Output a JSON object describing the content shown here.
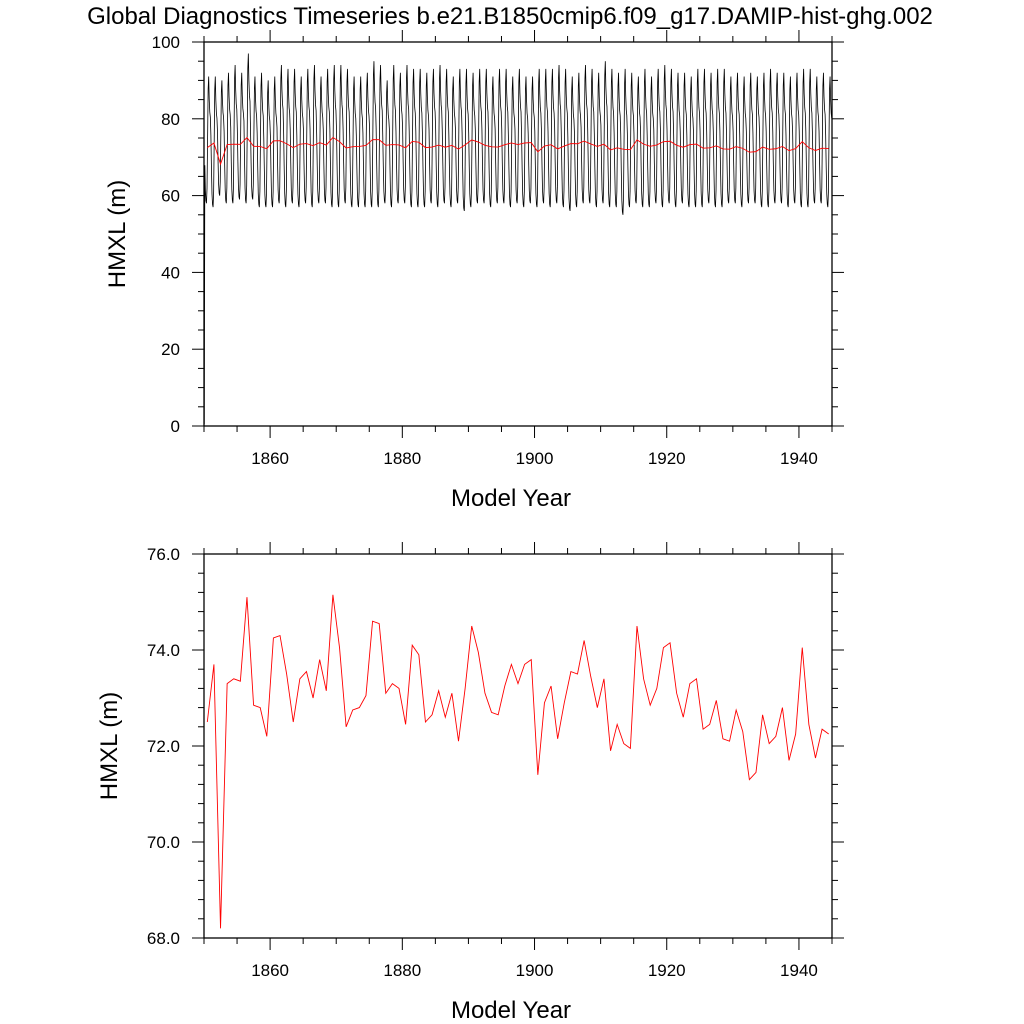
{
  "title": "Global Diagnostics Timeseries b.e21.B1850cmip6.f09_g17.DAMIP-hist-ghg.002",
  "chart_data": [
    {
      "type": "line",
      "xlabel": "Model Year",
      "ylabel": "HMXL (m)",
      "xlim": [
        1850,
        1945
      ],
      "ylim": [
        0,
        100
      ],
      "x_ticks": [
        "1860",
        "1880",
        "1900",
        "1920",
        "1940"
      ],
      "y_ticks": [
        "0",
        "20",
        "40",
        "60",
        "80",
        "100"
      ],
      "series": [
        {
          "color": "#000000",
          "resolution": "monthly",
          "start_year": 1850,
          "first_value": 0.5,
          "annual_max": [
            91,
            91,
            90,
            92,
            94,
            92,
            97,
            91,
            92,
            90,
            91,
            94,
            93,
            93,
            91,
            93,
            94,
            91,
            93,
            94,
            94,
            93,
            91,
            91,
            92,
            95,
            94,
            90,
            94,
            92,
            94,
            93,
            93,
            92,
            93,
            94,
            93,
            91,
            93,
            93,
            92,
            93,
            93,
            91,
            93,
            93,
            91,
            93,
            91,
            91,
            93,
            93,
            93,
            94,
            93,
            91,
            92,
            94,
            93,
            92,
            95,
            93,
            92,
            93,
            92,
            91,
            93,
            91,
            93,
            94,
            93,
            92,
            92,
            91,
            93,
            93,
            92,
            93,
            93,
            91,
            92,
            91,
            92,
            91,
            92,
            93,
            92,
            92,
            91,
            92,
            93,
            93,
            91,
            92,
            91
          ],
          "annual_min": [
            58,
            57,
            60,
            58,
            58,
            59,
            58,
            59,
            57,
            57,
            57,
            58,
            57,
            58,
            57,
            58,
            57,
            58,
            58,
            57,
            57,
            58,
            57,
            57,
            57,
            57,
            57,
            58,
            57,
            58,
            58,
            57,
            57,
            57,
            58,
            57,
            58,
            57,
            58,
            56,
            57,
            58,
            58,
            57,
            58,
            58,
            57,
            58,
            57,
            58,
            57,
            58,
            57,
            58,
            57,
            56,
            57,
            58,
            58,
            57,
            58,
            57,
            57,
            55,
            57,
            58,
            57,
            57,
            58,
            57,
            58,
            57,
            58,
            57,
            57,
            57,
            58,
            57,
            57,
            58,
            58,
            57,
            58,
            58,
            57,
            57,
            58,
            58,
            57,
            58,
            57,
            57,
            58,
            58,
            57
          ]
        },
        {
          "color": "#ff0000",
          "resolution": "annual",
          "values": [
            72.5,
            73.7,
            68.2,
            73.3,
            73.4,
            73.35,
            75.1,
            72.85,
            72.8,
            72.2,
            74.25,
            74.3,
            73.5,
            72.5,
            73.4,
            73.55,
            73.0,
            73.8,
            73.15,
            75.15,
            74.05,
            72.4,
            72.75,
            72.8,
            73.05,
            74.6,
            74.55,
            73.1,
            73.3,
            73.2,
            72.45,
            74.1,
            73.9,
            72.5,
            72.65,
            73.15,
            72.6,
            73.1,
            72.1,
            73.2,
            74.5,
            73.95,
            73.1,
            72.7,
            72.65,
            73.25,
            73.7,
            73.3,
            73.7,
            73.8,
            71.4,
            72.9,
            73.25,
            72.15,
            72.9,
            73.55,
            73.5,
            74.2,
            73.45,
            72.8,
            73.4,
            71.9,
            72.45,
            72.05,
            71.95,
            74.5,
            73.4,
            72.85,
            73.2,
            74.05,
            74.15,
            73.1,
            72.6,
            73.3,
            73.4,
            72.35,
            72.45,
            72.95,
            72.15,
            72.1,
            72.75,
            72.3,
            71.3,
            71.45,
            72.65,
            72.05,
            72.2,
            72.8,
            71.7,
            72.25,
            74.05,
            72.45,
            71.75,
            72.35,
            72.25
          ]
        }
      ]
    },
    {
      "type": "line",
      "xlabel": "Model Year",
      "ylabel": "HMXL (m)",
      "xlim": [
        1850,
        1945
      ],
      "ylim": [
        68,
        76
      ],
      "x_ticks": [
        "1860",
        "1880",
        "1900",
        "1920",
        "1940"
      ],
      "y_ticks": [
        "68.0",
        "70.0",
        "72.0",
        "74.0",
        "76.0"
      ],
      "series": [
        {
          "color": "#ff0000",
          "resolution": "annual",
          "values": [
            72.5,
            73.7,
            68.2,
            73.3,
            73.4,
            73.35,
            75.1,
            72.85,
            72.8,
            72.2,
            74.25,
            74.3,
            73.5,
            72.5,
            73.4,
            73.55,
            73.0,
            73.8,
            73.15,
            75.15,
            74.05,
            72.4,
            72.75,
            72.8,
            73.05,
            74.6,
            74.55,
            73.1,
            73.3,
            73.2,
            72.45,
            74.1,
            73.9,
            72.5,
            72.65,
            73.15,
            72.6,
            73.1,
            72.1,
            73.2,
            74.5,
            73.95,
            73.1,
            72.7,
            72.65,
            73.25,
            73.7,
            73.3,
            73.7,
            73.8,
            71.4,
            72.9,
            73.25,
            72.15,
            72.9,
            73.55,
            73.5,
            74.2,
            73.45,
            72.8,
            73.4,
            71.9,
            72.45,
            72.05,
            71.95,
            74.5,
            73.4,
            72.85,
            73.2,
            74.05,
            74.15,
            73.1,
            72.6,
            73.3,
            73.4,
            72.35,
            72.45,
            72.95,
            72.15,
            72.1,
            72.75,
            72.3,
            71.3,
            71.45,
            72.65,
            72.05,
            72.2,
            72.8,
            71.7,
            72.25,
            74.05,
            72.45,
            71.75,
            72.35,
            72.25
          ]
        }
      ]
    }
  ]
}
